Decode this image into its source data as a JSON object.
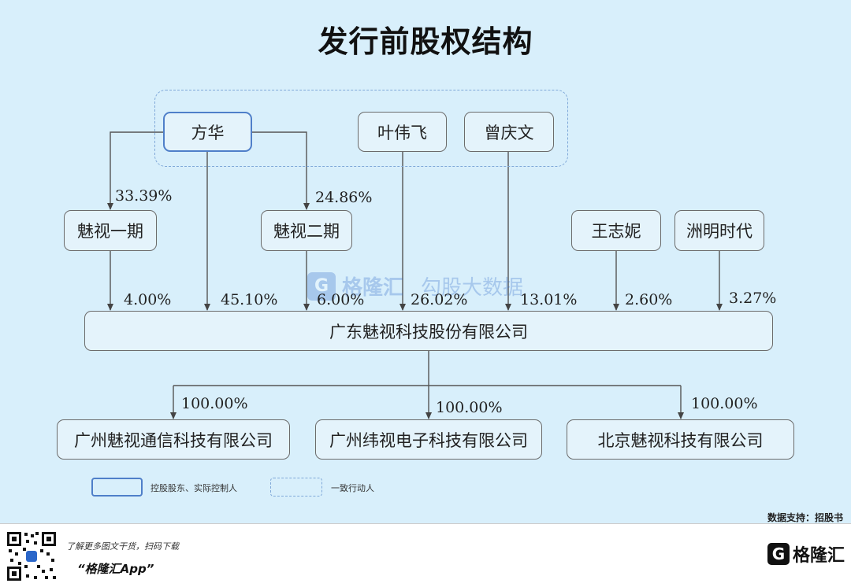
{
  "title": "发行前股权结构",
  "shareholders": {
    "fanghua": "方华",
    "yeweifei": "叶伟飞",
    "cengqingwen": "曾庆文",
    "meishi_1": "魅视一期",
    "meishi_2": "魅视二期",
    "wangzhini": "王志妮",
    "zhouming": "洲明时代"
  },
  "company": "广东魅视科技股份有限公司",
  "subsidiaries": [
    "广州魅视通信科技有限公司",
    "广州纬视电子科技有限公司",
    "北京魅视科技有限公司"
  ],
  "percentages": {
    "fanghua_to_meishi1": "33.39%",
    "fanghua_to_meishi2": "24.86%",
    "meishi1_to_company": "4.00%",
    "fanghua_to_company": "45.10%",
    "meishi2_to_company": "6.00%",
    "yeweifei_to_company": "26.02%",
    "cengqingwen_to_company": "13.01%",
    "wangzhini_to_company": "2.60%",
    "zhouming_to_company": "3.27%",
    "sub1": "100.00%",
    "sub2": "100.00%",
    "sub3": "100.00%"
  },
  "legend": {
    "controller": "控股股东、实际控制人",
    "concert": "一致行动人"
  },
  "source": "数据支持：招股书",
  "footer": {
    "promo_line": "了解更多图文干货，扫码下载",
    "app_name": "“格隆汇App”",
    "logo_mark": "G",
    "logo_text": "格隆汇"
  },
  "watermark": {
    "mark": "G",
    "brand": "格隆汇",
    "sub": "勾股大数据"
  },
  "colors": {
    "background": "#d8effb",
    "controller_border": "#4f7fc9",
    "concert_border": "#7fa8d8",
    "box_border": "#6b6b6b"
  }
}
